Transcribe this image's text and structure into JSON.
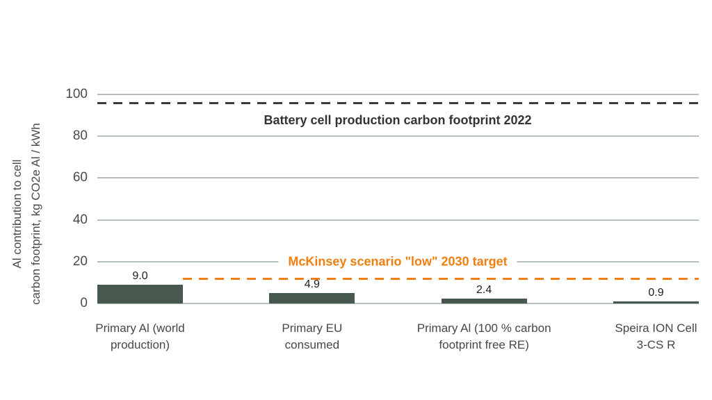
{
  "page": {
    "background_color": "#ffffff"
  },
  "chart_data": {
    "type": "bar",
    "ylabel_lines": [
      "Al contribution to cell",
      "carbon footprint, kg CO2e Al / kWh"
    ],
    "categories": [
      "Primary Al (world\nproduction)",
      "Primary EU\nconsumed",
      "Primary Al (100 % carbon\nfootprint free RE)",
      "Speira ION Cell\n3-CS R"
    ],
    "values": [
      9.0,
      4.9,
      2.4,
      0.9
    ],
    "value_labels": [
      "9.0",
      "4.9",
      "2.4",
      "0.9"
    ],
    "ylim": [
      0,
      100
    ],
    "yticks": [
      0,
      20,
      40,
      60,
      80,
      100
    ],
    "ytick_labels": [
      "0",
      "20",
      "40",
      "60",
      "80",
      "100"
    ],
    "grid": "horizontal-only",
    "legend": "none",
    "bar_color": "#47584f",
    "gridline_color": "#b5c0bb",
    "reference_lines": [
      {
        "id": "battery-2022",
        "value": 96,
        "label": "Battery cell production carbon footprint 2022",
        "color": "#3a3a3a",
        "style": "dashed",
        "extent": "full-plot-width",
        "label_position": "below-line-centered"
      },
      {
        "id": "mckinsey-2030",
        "value": 12,
        "label": "McKinsey scenario \"low\" 2030 target",
        "color": "#ef7f10",
        "style": "dashed",
        "extent": "right-of-first-bar",
        "label_position": "centered-on-20-gridline"
      }
    ]
  }
}
